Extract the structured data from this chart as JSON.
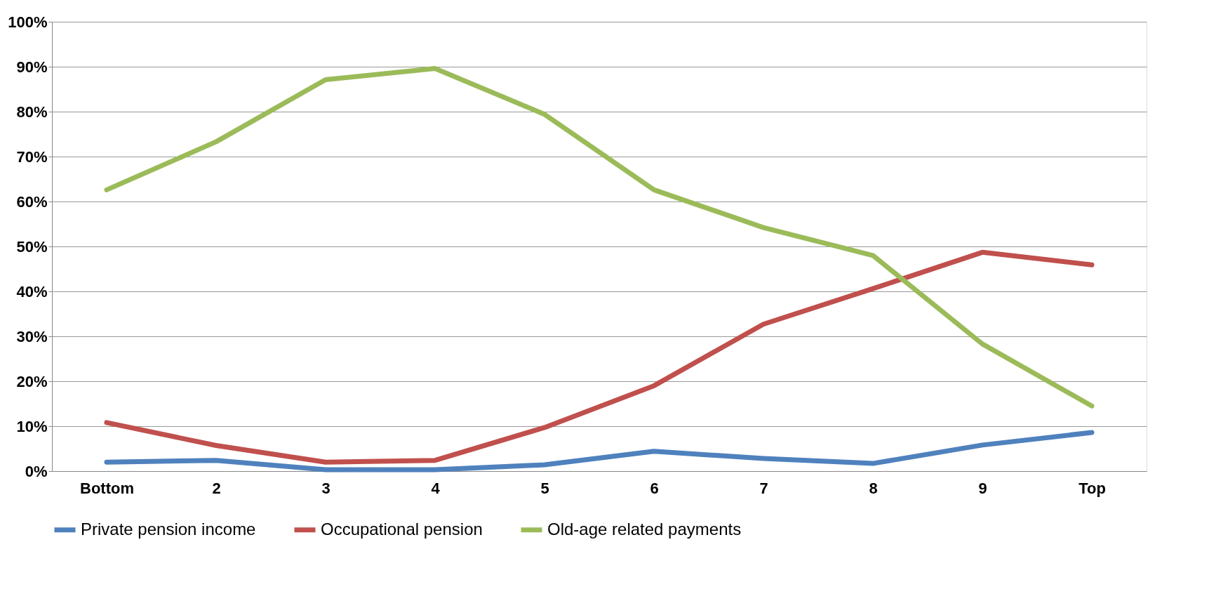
{
  "chart_data": {
    "type": "line",
    "categories": [
      "Bottom",
      "2",
      "3",
      "4",
      "5",
      "6",
      "7",
      "8",
      "9",
      "Top"
    ],
    "series": [
      {
        "name": "Private pension income",
        "color": "#4f81bd",
        "values": [
          2.0,
          2.4,
          0.3,
          0.3,
          1.4,
          4.4,
          2.8,
          1.7,
          5.8,
          8.6
        ]
      },
      {
        "name": "Occupational pension",
        "color": "#c0504d",
        "values": [
          10.8,
          5.7,
          2.0,
          2.4,
          9.7,
          19.0,
          32.7,
          40.6,
          48.7,
          45.9
        ]
      },
      {
        "name": "Old-age related payments",
        "color": "#9bbb59",
        "values": [
          62.6,
          73.3,
          87.1,
          89.6,
          79.4,
          62.6,
          54.2,
          48.0,
          28.3,
          14.5
        ]
      }
    ],
    "ylim": [
      0,
      100
    ],
    "yticks": [
      {
        "value": 0,
        "label": "0%"
      },
      {
        "value": 10,
        "label": "10%"
      },
      {
        "value": 20,
        "label": "20%"
      },
      {
        "value": 30,
        "label": "30%"
      },
      {
        "value": 40,
        "label": "40%"
      },
      {
        "value": 50,
        "label": "50%"
      },
      {
        "value": 60,
        "label": "60%"
      },
      {
        "value": 70,
        "label": "70%"
      },
      {
        "value": 80,
        "label": "80%"
      },
      {
        "value": 90,
        "label": "90%"
      },
      {
        "value": 100,
        "label": "100%"
      }
    ],
    "grid": "y",
    "legend": "bottom",
    "marker": "none",
    "line_style": "solid"
  }
}
